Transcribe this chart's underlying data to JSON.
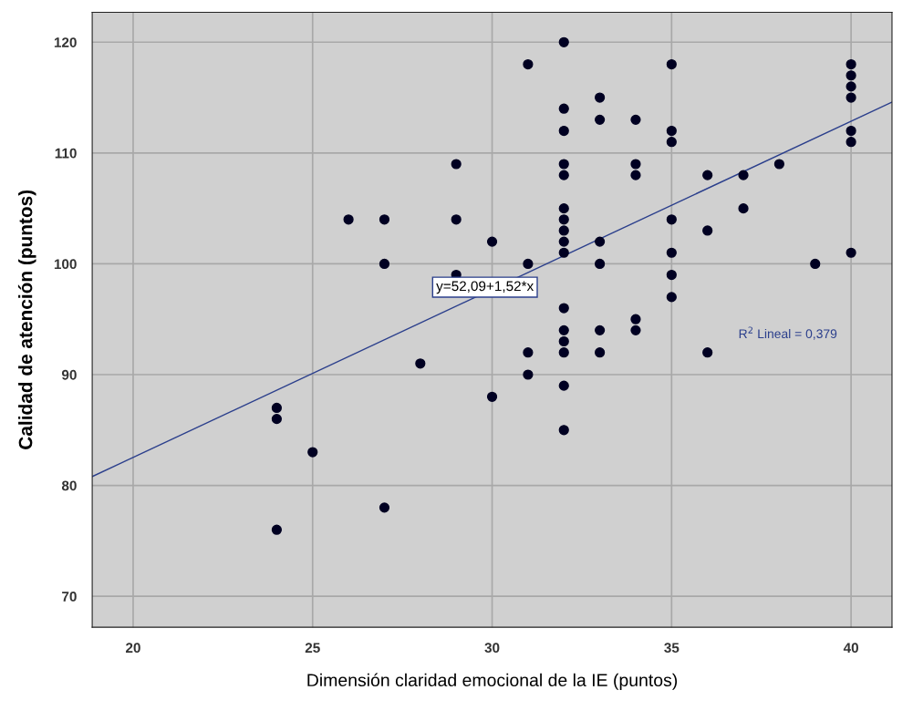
{
  "chart_data": {
    "type": "scatter",
    "xlabel": "Dimensión claridad emocional de la IE (puntos)",
    "ylabel": "Calidad de atención (puntos)",
    "xlim": [
      18.86,
      41.14
    ],
    "ylim": [
      67.2,
      122.7
    ],
    "xticks": [
      20,
      25,
      30,
      35,
      40
    ],
    "yticks": [
      70,
      80,
      90,
      100,
      110,
      120
    ],
    "grid": true,
    "series": [
      {
        "color": "#000022",
        "marker": "circle",
        "x": [
          24,
          24,
          24,
          25,
          26,
          27,
          27,
          27,
          28,
          29,
          29,
          29,
          30,
          30,
          31,
          31,
          31,
          31,
          32,
          32,
          32,
          32,
          32,
          32,
          32,
          32,
          32,
          32,
          32,
          32,
          32,
          32,
          32,
          32,
          33,
          33,
          33,
          33,
          33,
          33,
          34,
          34,
          34,
          34,
          34,
          35,
          35,
          35,
          35,
          35,
          35,
          35,
          36,
          36,
          36,
          37,
          37,
          38,
          39,
          40,
          40,
          40,
          40,
          40,
          40,
          40
        ],
        "values": [
          87,
          86,
          76,
          83,
          104,
          104,
          100,
          78,
          91,
          109,
          104,
          99,
          102,
          88,
          118,
          100,
          92,
          90,
          120,
          114,
          112,
          109,
          108,
          105,
          104,
          103,
          102,
          101,
          96,
          94,
          93,
          92,
          89,
          85,
          115,
          113,
          102,
          100,
          94,
          92,
          113,
          109,
          108,
          95,
          94,
          118,
          112,
          111,
          104,
          101,
          99,
          97,
          108,
          103,
          92,
          108,
          105,
          109,
          100,
          118,
          117,
          116,
          115,
          112,
          111,
          101
        ]
      },
      {
        "type": "line",
        "color": "#2b3f8c",
        "marker": "none",
        "x": [
          18.86,
          41.14
        ],
        "values": [
          80.8,
          114.6
        ]
      }
    ],
    "annotations": [
      {
        "text": "y=52,09+1,52*x",
        "x": 29.8,
        "y": 97.3
      },
      "R$^{2}$ Lineal = 0,379"
    ]
  }
}
